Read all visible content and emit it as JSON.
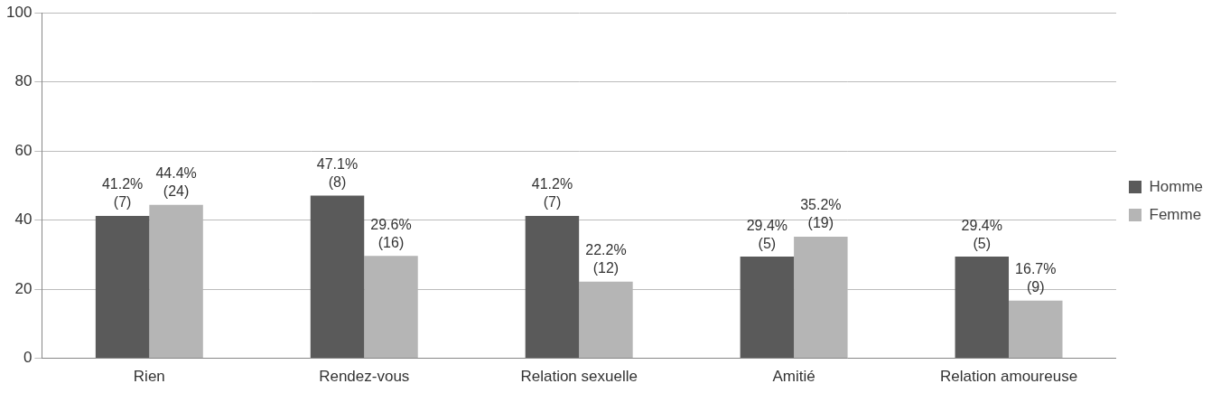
{
  "chart_data": {
    "type": "bar",
    "categories": [
      "Rien",
      "Rendez-vous",
      "Relation sexuelle",
      "Amitié",
      "Relation amoureuse"
    ],
    "series": [
      {
        "name": "Homme",
        "color": "#5a5a5a",
        "values": [
          41.2,
          47.1,
          41.2,
          29.4,
          29.4
        ],
        "value_labels": [
          [
            "41.2%",
            "(7)"
          ],
          [
            "47.1%",
            "(8)"
          ],
          [
            "41.2%",
            "(7)"
          ],
          [
            "29.4%",
            "(5)"
          ],
          [
            "29.4%",
            "(5)"
          ]
        ]
      },
      {
        "name": "Femme",
        "color": "#b5b5b5",
        "values": [
          44.4,
          29.6,
          22.2,
          35.2,
          16.7
        ],
        "value_labels": [
          [
            "44.4%",
            "(24)"
          ],
          [
            "29.6%",
            "(16)"
          ],
          [
            "22.2%",
            "(12)"
          ],
          [
            "35.2%",
            "(19)"
          ],
          [
            "16.7%",
            "(9)"
          ]
        ]
      }
    ],
    "ylim": [
      0,
      100
    ],
    "yticks": [
      0,
      20,
      40,
      60,
      80,
      100
    ],
    "grid": true,
    "legend": "right",
    "data_labels": true
  }
}
